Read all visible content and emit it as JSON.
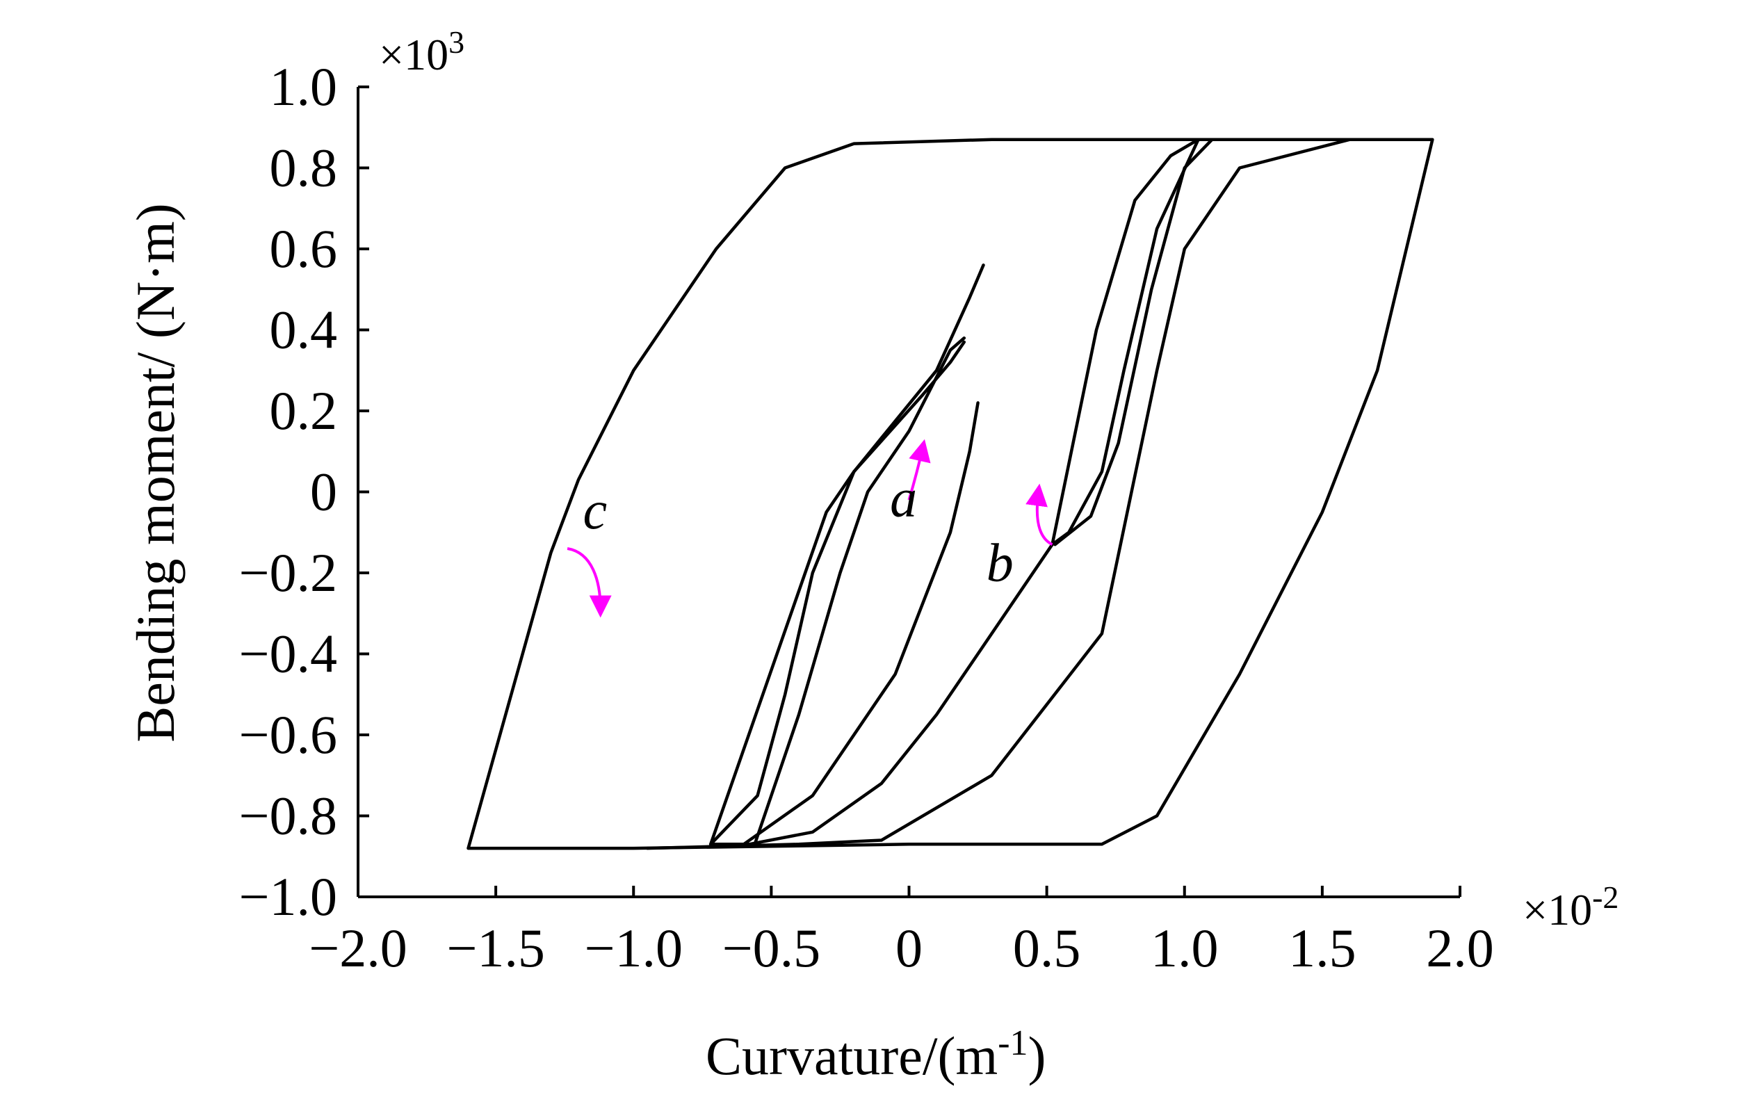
{
  "chart_data": {
    "type": "line",
    "title": "",
    "xlabel": "Curvature/(m",
    "xlabel_sup": "-1",
    "xlabel_close": ")",
    "ylabel": "Bending moment/ (N·m)",
    "x_multiplier": "×10",
    "x_multiplier_exp": "-2",
    "y_multiplier": "×10",
    "y_multiplier_exp": "3",
    "xlim": [
      -2.0,
      2.0
    ],
    "ylim": [
      -1.0,
      1.0
    ],
    "x_ticks": [
      "−2.0",
      "−1.5",
      "−1.0",
      "−0.5",
      "0",
      "0.5",
      "1.0",
      "1.5",
      "2.0"
    ],
    "x_tick_values": [
      -2.0,
      -1.5,
      -1.0,
      -0.5,
      0,
      0.5,
      1.0,
      1.5,
      2.0
    ],
    "y_ticks": [
      "1.0",
      "0.8",
      "0.6",
      "0.4",
      "0.2",
      "0",
      "−0.2",
      "−0.4",
      "−0.6",
      "−0.8",
      "−1.0"
    ],
    "y_tick_values": [
      1.0,
      0.8,
      0.6,
      0.4,
      0.2,
      0,
      -0.2,
      -0.4,
      -0.6,
      -0.8,
      -1.0
    ],
    "grid": false,
    "line_color": "#000000",
    "arrow_color": "#ff00ff",
    "series": [
      {
        "points": [
          [
            -1.6,
            -0.88
          ],
          [
            -1.3,
            -0.15
          ],
          [
            -1.2,
            0.03
          ],
          [
            -1.0,
            0.3
          ],
          [
            -0.7,
            0.6
          ],
          [
            -0.45,
            0.8
          ],
          [
            -0.2,
            0.86
          ],
          [
            0.3,
            0.87
          ],
          [
            1.0,
            0.87
          ],
          [
            1.9,
            0.87
          ],
          [
            1.7,
            0.3
          ],
          [
            1.5,
            -0.05
          ],
          [
            1.2,
            -0.45
          ],
          [
            0.9,
            -0.8
          ],
          [
            0.7,
            -0.87
          ],
          [
            0.0,
            -0.87
          ],
          [
            -1.0,
            -0.88
          ],
          [
            -1.6,
            -0.88
          ]
        ]
      },
      {
        "points": [
          [
            0.2,
            0.37
          ],
          [
            0.15,
            0.32
          ],
          [
            0.05,
            0.24
          ],
          [
            -0.2,
            0.05
          ],
          [
            -0.35,
            -0.2
          ],
          [
            -0.45,
            -0.5
          ],
          [
            -0.55,
            -0.75
          ],
          [
            -0.72,
            -0.87
          ],
          [
            -0.56,
            -0.87
          ],
          [
            -0.4,
            -0.55
          ],
          [
            -0.25,
            -0.2
          ],
          [
            -0.15,
            0.0
          ],
          [
            0.0,
            0.15
          ],
          [
            0.15,
            0.35
          ],
          [
            0.2,
            0.38
          ]
        ]
      },
      {
        "points": [
          [
            -0.72,
            -0.87
          ],
          [
            -0.3,
            -0.05
          ],
          [
            -0.2,
            0.05
          ],
          [
            0.1,
            0.3
          ],
          [
            0.22,
            0.48
          ],
          [
            0.27,
            0.56
          ]
        ]
      },
      {
        "points": [
          [
            0.52,
            -0.13
          ],
          [
            0.68,
            0.4
          ],
          [
            0.82,
            0.72
          ],
          [
            0.95,
            0.83
          ],
          [
            1.05,
            0.87
          ],
          [
            0.9,
            0.65
          ],
          [
            0.78,
            0.3
          ],
          [
            0.7,
            0.05
          ],
          [
            0.58,
            -0.1
          ],
          [
            0.52,
            -0.13
          ]
        ]
      },
      {
        "points": [
          [
            0.53,
            -0.13
          ],
          [
            0.66,
            -0.06
          ],
          [
            0.76,
            0.12
          ],
          [
            0.88,
            0.5
          ],
          [
            1.0,
            0.8
          ],
          [
            1.1,
            0.87
          ]
        ]
      },
      {
        "points": [
          [
            0.52,
            -0.13
          ],
          [
            0.3,
            -0.35
          ],
          [
            0.1,
            -0.55
          ],
          [
            -0.1,
            -0.72
          ],
          [
            -0.35,
            -0.84
          ],
          [
            -0.58,
            -0.87
          ]
        ]
      },
      {
        "points": [
          [
            -0.6,
            -0.87
          ],
          [
            -0.35,
            -0.75
          ],
          [
            -0.05,
            -0.45
          ],
          [
            0.15,
            -0.1
          ],
          [
            0.22,
            0.1
          ],
          [
            0.25,
            0.22
          ]
        ]
      },
      {
        "points": [
          [
            -0.95,
            -0.88
          ],
          [
            -0.4,
            -0.87
          ],
          [
            -0.1,
            -0.86
          ],
          [
            0.3,
            -0.7
          ],
          [
            0.7,
            -0.35
          ],
          [
            0.9,
            0.3
          ],
          [
            1.0,
            0.6
          ],
          [
            1.2,
            0.8
          ],
          [
            1.6,
            0.87
          ]
        ]
      }
    ],
    "annotations": [
      {
        "label": "a",
        "x": -0.02,
        "y": -0.06
      },
      {
        "label": "b",
        "x": 0.33,
        "y": -0.22
      },
      {
        "label": "c",
        "x": -1.14,
        "y": -0.09
      }
    ]
  }
}
